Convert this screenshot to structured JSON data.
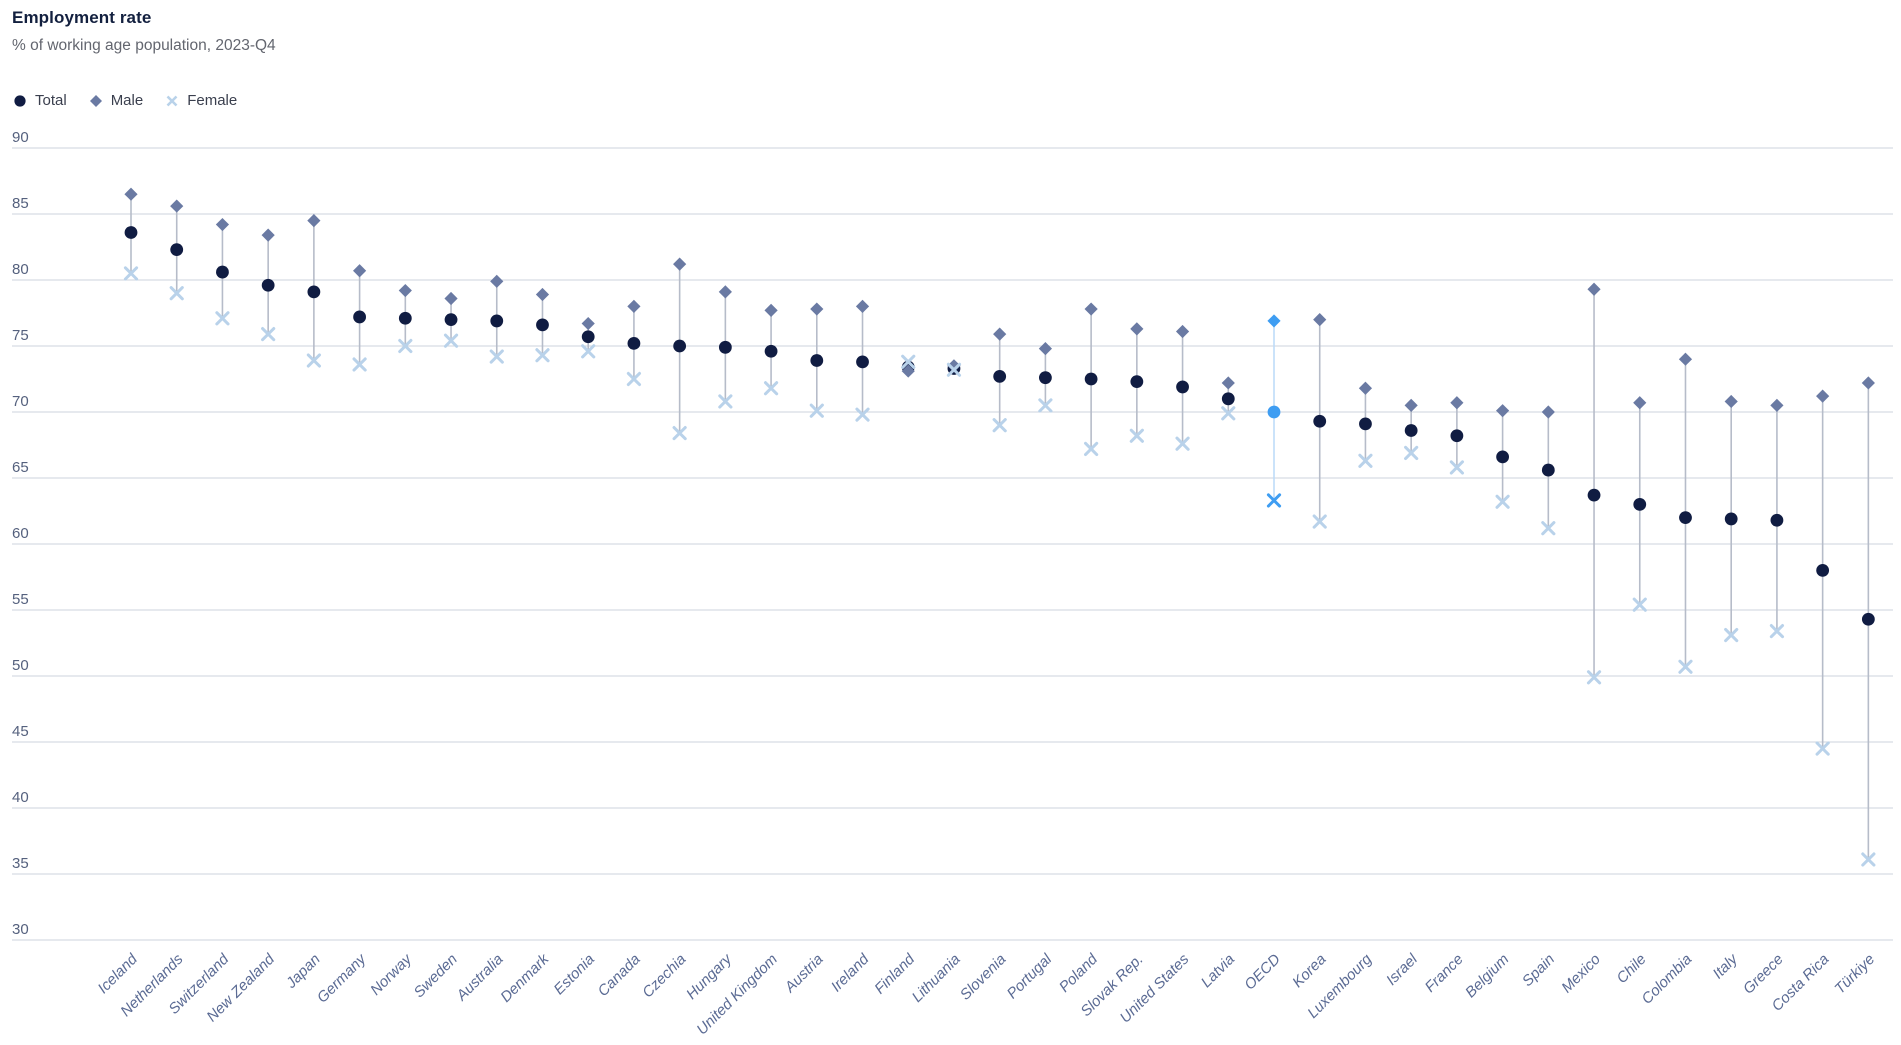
{
  "header": {
    "title": "Employment rate",
    "subtitle": "% of working age population, 2023-Q4"
  },
  "legend": {
    "items": [
      {
        "id": "total",
        "label": "Total",
        "marker": "circle"
      },
      {
        "id": "male",
        "label": "Male",
        "marker": "diamond"
      },
      {
        "id": "female",
        "label": "Female",
        "marker": "x"
      }
    ]
  },
  "chart_data": {
    "type": "scatter",
    "title": "Employment rate",
    "subtitle": "% of working age population, 2023-Q4",
    "ylim": [
      30,
      90
    ],
    "yticks": [
      90,
      85,
      80,
      75,
      70,
      65,
      60,
      55,
      50,
      45,
      40,
      35,
      30
    ],
    "grid": true,
    "legend_position": "top-left",
    "highlight_category": "OECD",
    "categories": [
      "Iceland",
      "Netherlands",
      "Switzerland",
      "New Zealand",
      "Japan",
      "Germany",
      "Norway",
      "Sweden",
      "Australia",
      "Denmark",
      "Estonia",
      "Canada",
      "Czechia",
      "Hungary",
      "United Kingdom",
      "Austria",
      "Ireland",
      "Finland",
      "Lithuania",
      "Slovenia",
      "Portugal",
      "Poland",
      "Slovak Rep.",
      "United States",
      "Latvia",
      "OECD",
      "Korea",
      "Luxembourg",
      "Israel",
      "France",
      "Belgium",
      "Spain",
      "Mexico",
      "Chile",
      "Colombia",
      "Italy",
      "Greece",
      "Costa Rica",
      "Türkiye"
    ],
    "series": [
      {
        "name": "Total",
        "marker": "circle",
        "values": [
          83.6,
          82.3,
          80.6,
          79.6,
          79.1,
          77.2,
          77.1,
          77.0,
          76.9,
          76.6,
          75.7,
          75.2,
          75.0,
          74.9,
          74.6,
          73.9,
          73.8,
          73.4,
          73.3,
          72.7,
          72.6,
          72.5,
          72.3,
          71.9,
          71.0,
          70.0,
          69.3,
          69.1,
          68.6,
          68.2,
          66.6,
          65.6,
          63.7,
          63.0,
          62.0,
          61.9,
          61.8,
          58.0,
          54.3
        ]
      },
      {
        "name": "Male",
        "marker": "diamond",
        "values": [
          86.5,
          85.6,
          84.2,
          83.4,
          84.5,
          80.7,
          79.2,
          78.6,
          79.9,
          78.9,
          76.7,
          78.0,
          81.2,
          79.1,
          77.7,
          77.8,
          78.0,
          73.1,
          73.5,
          75.9,
          74.8,
          77.8,
          76.3,
          76.1,
          72.2,
          76.9,
          77.0,
          71.8,
          70.5,
          70.7,
          70.1,
          70.0,
          79.3,
          70.7,
          74.0,
          70.8,
          70.5,
          71.2,
          72.2
        ]
      },
      {
        "name": "Female",
        "marker": "x",
        "values": [
          80.5,
          79.0,
          77.1,
          75.9,
          73.9,
          73.6,
          75.0,
          75.4,
          74.2,
          74.3,
          74.6,
          72.5,
          68.4,
          70.8,
          71.8,
          70.1,
          69.8,
          73.8,
          73.2,
          69.0,
          70.5,
          67.2,
          68.2,
          67.6,
          69.9,
          63.3,
          61.7,
          66.3,
          66.9,
          65.8,
          63.2,
          61.2,
          49.9,
          55.4,
          50.7,
          53.1,
          53.4,
          44.5,
          36.1
        ]
      }
    ],
    "colors": {
      "total": "#101c42",
      "male": "#6a7aa3",
      "female": "#b9d2ea",
      "highlight": "#3e9df2",
      "highlight_stem": "#bedcf8",
      "stem": "#b6bcc9",
      "grid": "#ccd3dd",
      "ytick_text": "#55617e",
      "xlabel_text": "#5b6b94"
    }
  }
}
